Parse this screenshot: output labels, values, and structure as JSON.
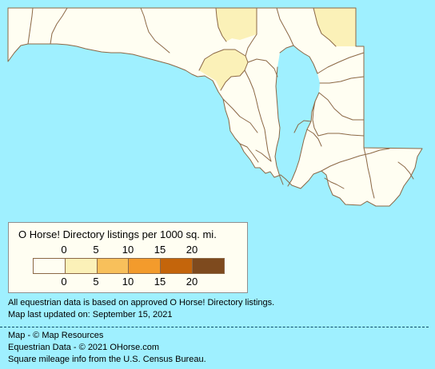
{
  "map": {
    "background_color": "#9ff0ff",
    "land_color": "#fffef2",
    "border_color": "#8b6846",
    "highlight_color": "#fbf1b8"
  },
  "legend": {
    "title": "O Horse! Directory listings per 1000 sq. mi.",
    "top_labels": [
      "0",
      "5",
      "10",
      "15",
      "20"
    ],
    "bottom_labels": [
      "0",
      "5",
      "10",
      "15",
      "20"
    ],
    "bins": [
      {
        "min": 0,
        "max": 0,
        "color": "#fffef2"
      },
      {
        "min": 0,
        "max": 5,
        "color": "#fbf1b8"
      },
      {
        "min": 5,
        "max": 10,
        "color": "#f8c05b"
      },
      {
        "min": 10,
        "max": 15,
        "color": "#f39b2c"
      },
      {
        "min": 15,
        "max": 20,
        "color": "#c4650b"
      },
      {
        "min": 20,
        "max": null,
        "color": "#7e4a1e"
      }
    ]
  },
  "notes": [
    "All equestrian data is based on approved O Horse! Directory listings.",
    "Map last updated on: September 15, 2021"
  ],
  "credits": [
    "Map - © Map Resources",
    "Equestrian Data - © 2021 OHorse.com",
    "Square mileage info from the U.S. Census Bureau."
  ]
}
